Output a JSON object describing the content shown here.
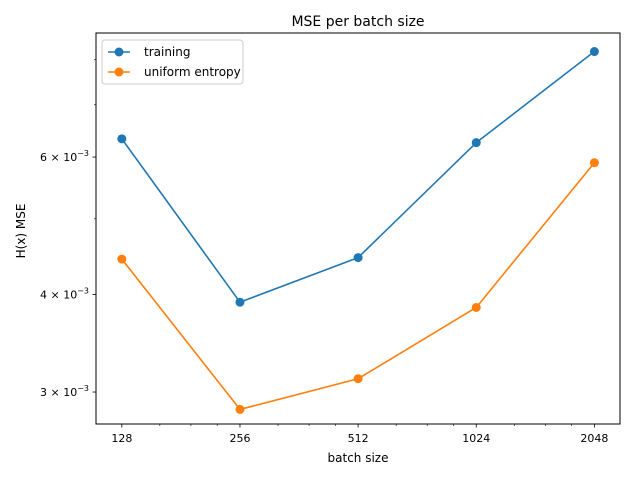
{
  "chart_data": {
    "type": "line",
    "title": "MSE per batch size",
    "xlabel": "batch size",
    "ylabel": "H(x) MSE",
    "x_scale": "log2",
    "y_scale": "log",
    "x": [
      128,
      256,
      512,
      1024,
      2048
    ],
    "x_tick_labels": [
      "128",
      "256",
      "512",
      "1024",
      "2048"
    ],
    "xlim": [
      110,
      2380
    ],
    "ylim": [
      0.00273,
      0.00865
    ],
    "y_ticks": [
      {
        "value": 0.003,
        "mantissa": "3",
        "base": "10",
        "exp": "−3"
      },
      {
        "value": 0.004,
        "mantissa": "4",
        "base": "10",
        "exp": "−3"
      },
      {
        "value": 0.006,
        "mantissa": "6",
        "base": "10",
        "exp": "−3"
      }
    ],
    "y_minor_ticks": [
      0.005,
      0.007,
      0.008
    ],
    "grid": false,
    "legend_position": "top-left",
    "series": [
      {
        "name": "training",
        "color": "#1f77b4",
        "values": [
          0.00633,
          0.00391,
          0.00446,
          0.00626,
          0.00819
        ]
      },
      {
        "name": "uniform entropy",
        "color": "#ff7f0e",
        "values": [
          0.00444,
          0.00285,
          0.00312,
          0.00385,
          0.0059
        ]
      }
    ]
  }
}
